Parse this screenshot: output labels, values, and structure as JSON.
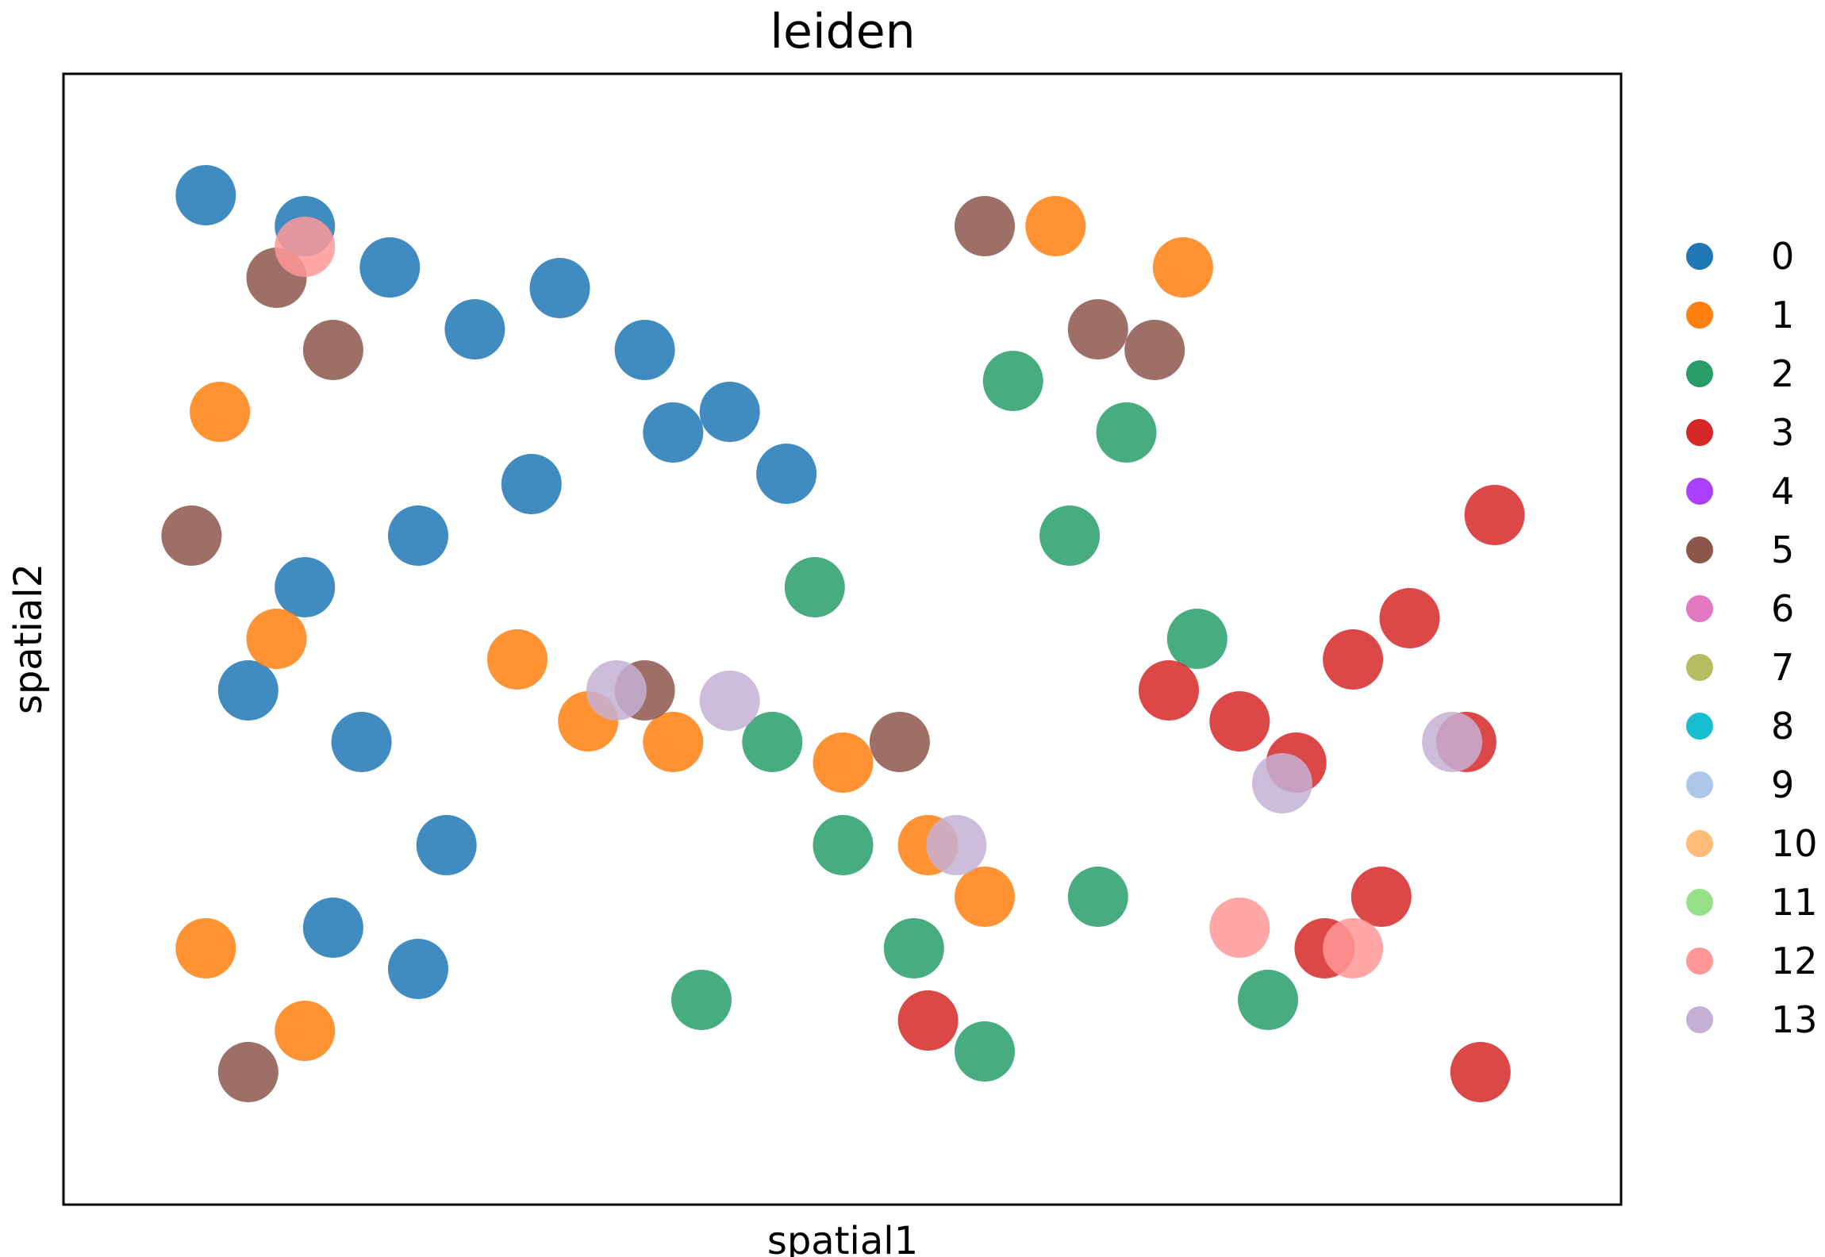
{
  "chart_data": {
    "type": "scatter",
    "title": "leiden",
    "xlabel": "spatial1",
    "ylabel": "spatial2",
    "xticks": [],
    "yticks": [],
    "grid": false,
    "legend": {
      "placement": "right-outside",
      "entries": [
        {
          "label": "0",
          "color": "#1f77b4"
        },
        {
          "label": "1",
          "color": "#ff7f0e"
        },
        {
          "label": "2",
          "color": "#279e68"
        },
        {
          "label": "3",
          "color": "#d62728"
        },
        {
          "label": "4",
          "color": "#aa40fc"
        },
        {
          "label": "5",
          "color": "#8c564b"
        },
        {
          "label": "6",
          "color": "#e377c2"
        },
        {
          "label": "7",
          "color": "#b5bd61"
        },
        {
          "label": "8",
          "color": "#17becf"
        },
        {
          "label": "9",
          "color": "#aec7e8"
        },
        {
          "label": "10",
          "color": "#ffbb78"
        },
        {
          "label": "11",
          "color": "#98df8a"
        },
        {
          "label": "12",
          "color": "#ff9896"
        },
        {
          "label": "13",
          "color": "#c5b0d5"
        }
      ]
    },
    "xlim": [
      0,
      1
    ],
    "ylim": [
      0,
      1
    ],
    "series_note_clusters": [
      {
        "name": "0",
        "x": [
          0.05,
          0.12,
          0.18,
          0.24,
          0.3,
          0.36,
          0.42,
          0.46,
          0.38,
          0.28,
          0.2,
          0.12,
          0.08,
          0.16,
          0.22,
          0.2,
          0.14
        ],
        "y": [
          0.93,
          0.9,
          0.86,
          0.8,
          0.84,
          0.78,
          0.72,
          0.66,
          0.7,
          0.65,
          0.6,
          0.55,
          0.45,
          0.4,
          0.3,
          0.18,
          0.22
        ]
      },
      {
        "name": "1",
        "x": [
          0.06,
          0.1,
          0.27,
          0.32,
          0.38,
          0.5,
          0.56,
          0.6,
          0.65,
          0.05,
          0.12,
          0.74
        ],
        "y": [
          0.72,
          0.5,
          0.48,
          0.42,
          0.4,
          0.38,
          0.3,
          0.25,
          0.9,
          0.2,
          0.12,
          0.86
        ]
      },
      {
        "name": "2",
        "x": [
          0.45,
          0.5,
          0.55,
          0.6,
          0.66,
          0.7,
          0.75,
          0.4,
          0.48,
          0.62,
          0.68,
          0.8
        ],
        "y": [
          0.4,
          0.3,
          0.2,
          0.1,
          0.6,
          0.7,
          0.5,
          0.15,
          0.55,
          0.75,
          0.25,
          0.15
        ]
      },
      {
        "name": "3",
        "x": [
          0.73,
          0.78,
          0.82,
          0.86,
          0.9,
          0.94,
          0.96,
          0.88,
          0.84,
          0.95,
          0.56
        ],
        "y": [
          0.45,
          0.42,
          0.38,
          0.48,
          0.52,
          0.4,
          0.62,
          0.25,
          0.2,
          0.08,
          0.13
        ]
      },
      {
        "name": "5",
        "x": [
          0.1,
          0.14,
          0.36,
          0.54,
          0.6,
          0.68,
          0.72,
          0.04,
          0.08
        ],
        "y": [
          0.85,
          0.78,
          0.45,
          0.4,
          0.9,
          0.8,
          0.78,
          0.6,
          0.08
        ]
      },
      {
        "name": "12",
        "x": [
          0.12,
          0.78,
          0.86
        ],
        "y": [
          0.88,
          0.22,
          0.2
        ]
      },
      {
        "name": "13",
        "x": [
          0.34,
          0.42,
          0.58,
          0.81,
          0.93
        ],
        "y": [
          0.45,
          0.44,
          0.3,
          0.36,
          0.4
        ]
      }
    ]
  }
}
